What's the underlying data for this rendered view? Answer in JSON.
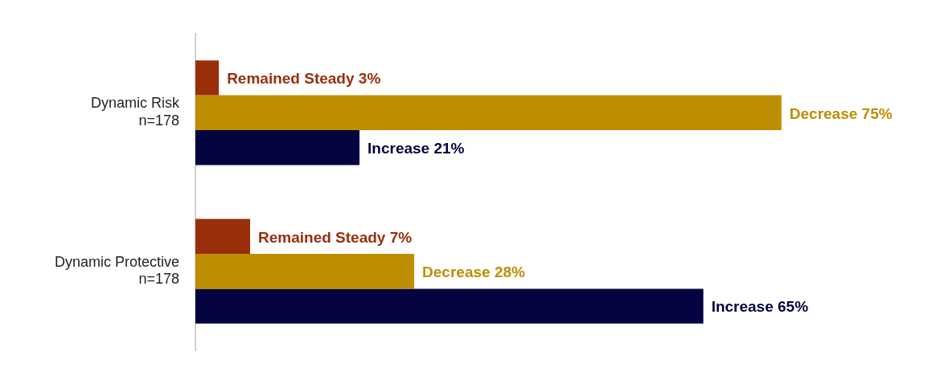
{
  "chart_data": {
    "type": "bar",
    "orientation": "horizontal",
    "tick_labels": "y",
    "categories": [
      "Dynamic Risk\nn=178",
      "Dynamic Protective\nn=178"
    ],
    "series": [
      {
        "color": "#992e0b",
        "values": [
          3,
          7
        ],
        "value_labels": [
          "Remained Steady 3%",
          "Remained Steady 7%"
        ]
      },
      {
        "color": "#bf8d00",
        "values": [
          75,
          28
        ],
        "value_labels": [
          "Decrease 75%",
          "Decrease 28%"
        ]
      },
      {
        "color": "#03043f",
        "values": [
          21,
          65
        ],
        "value_labels": [
          "Increase 21%",
          "Increase 65%"
        ]
      }
    ]
  }
}
